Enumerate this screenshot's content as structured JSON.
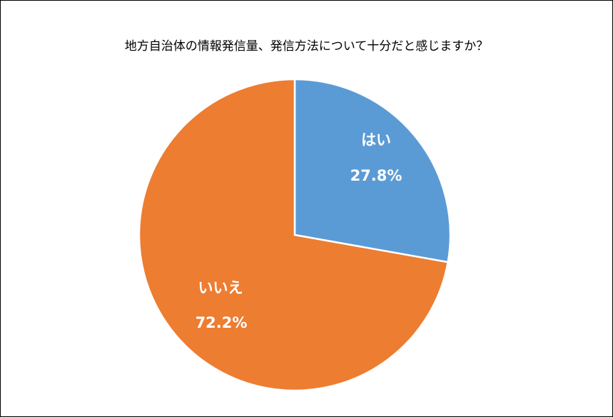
{
  "chart_data": {
    "type": "pie",
    "title": "地方自治体の情報発信量、発信方法について十分だと感じますか？",
    "slices": [
      {
        "label": "はい",
        "value": 27.8,
        "value_label": "27.8%",
        "color": "#5B9BD5"
      },
      {
        "label": "いいえ",
        "value": 72.2,
        "value_label": "72.2%",
        "color": "#ED7D31"
      }
    ],
    "start": "12 o'clock, clockwise",
    "legend": "none",
    "data_labels": "inside slices"
  }
}
